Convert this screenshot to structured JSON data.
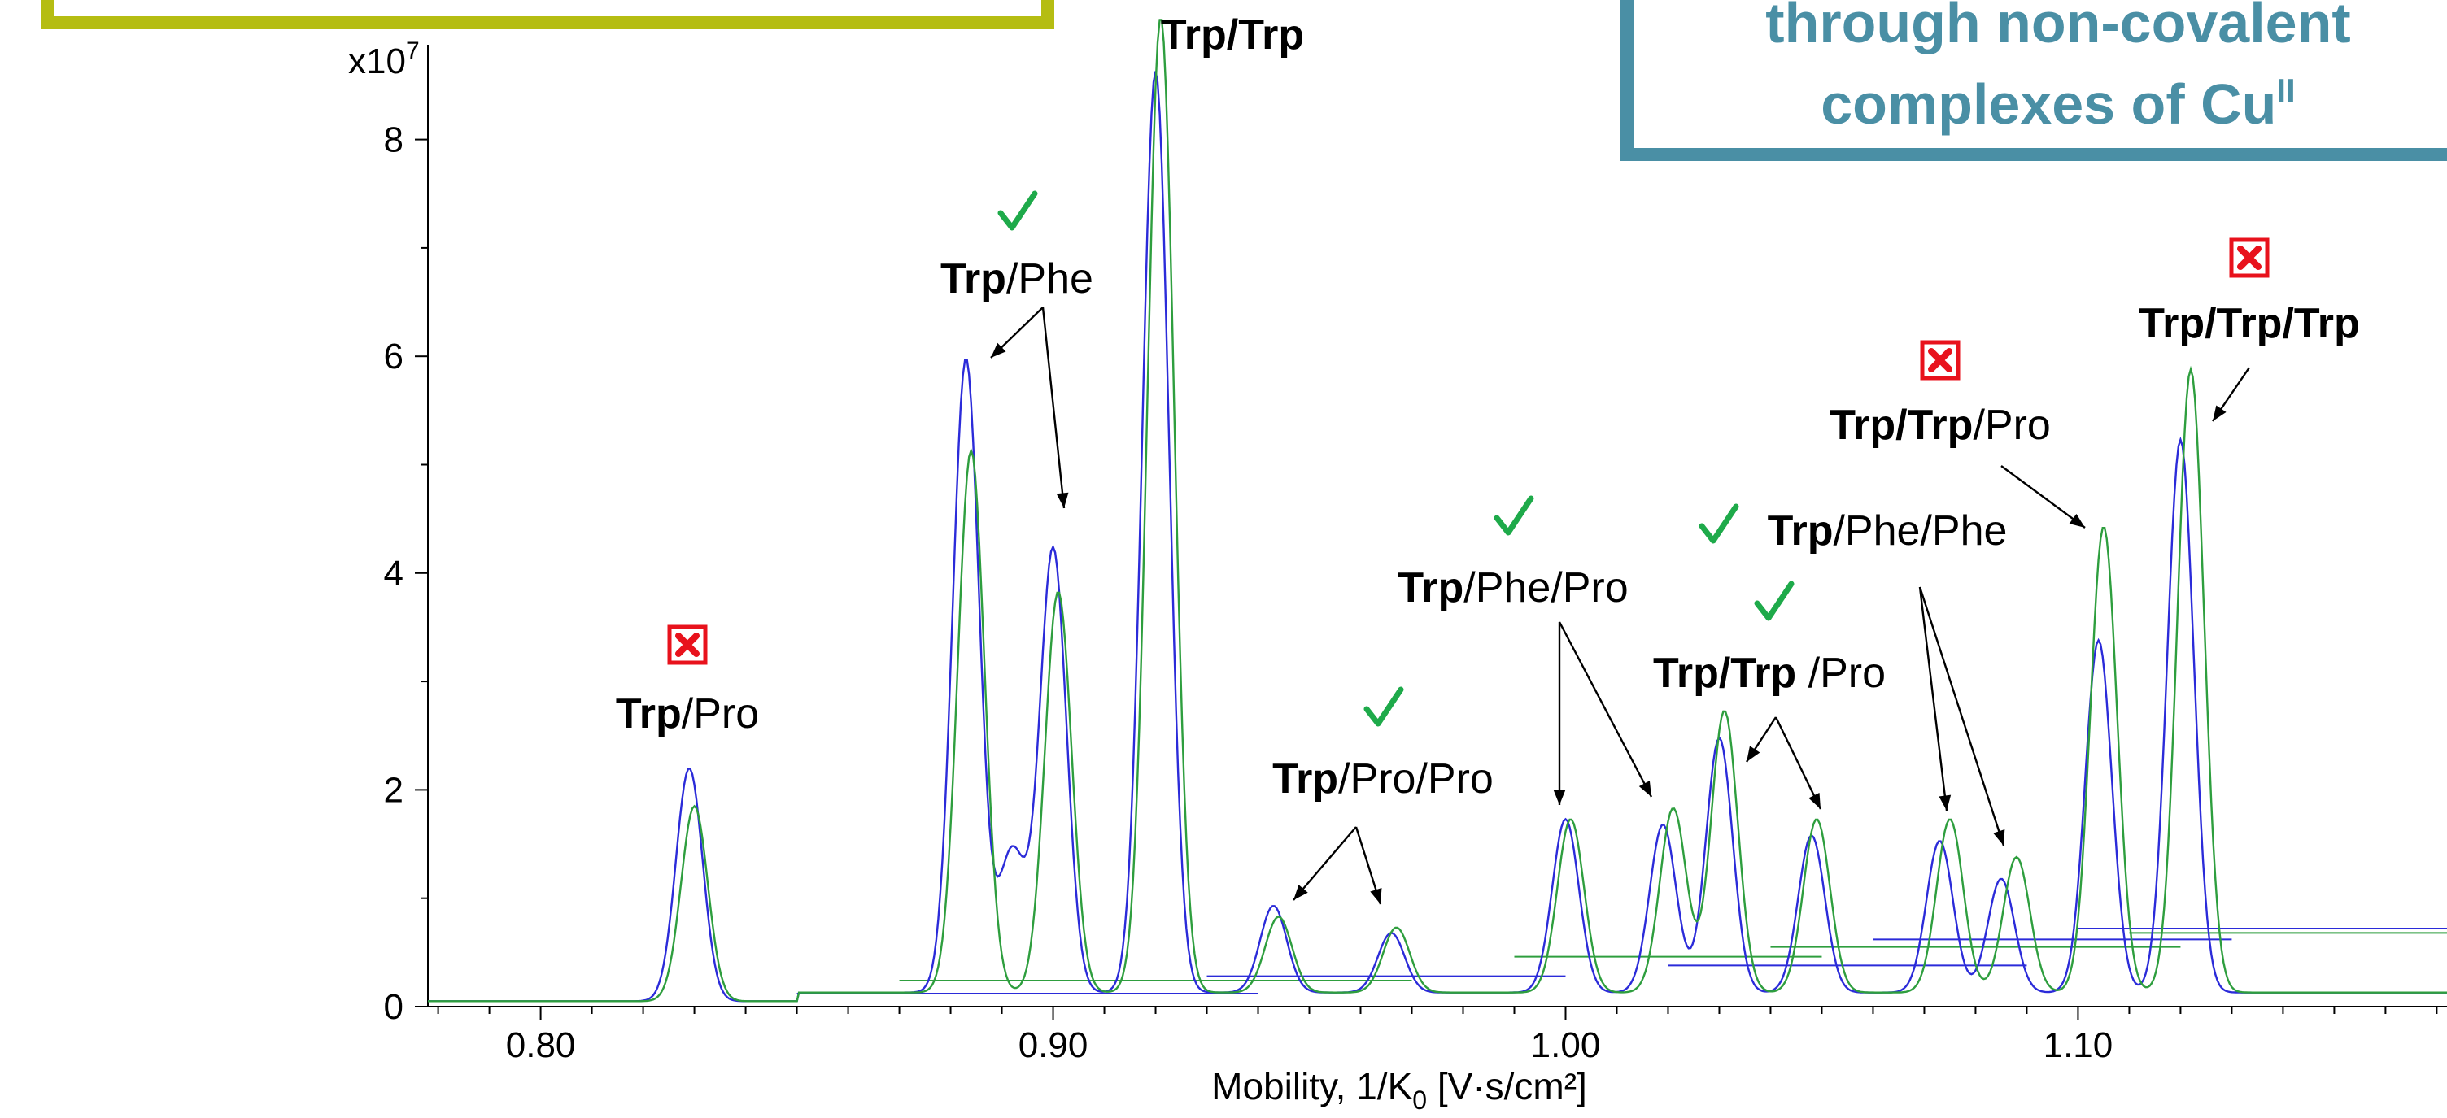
{
  "chart_data": {
    "type": "line",
    "title": "",
    "xlabel": "Mobility, 1/K",
    "xlabel_sub": "0",
    "xlabel_units": " [V·s/cm²]",
    "ylabel": "",
    "y_multiplier_base": "x10",
    "y_multiplier_exp": "7",
    "xlim": [
      0.778,
      1.172
    ],
    "ylim": [
      0,
      9
    ],
    "x_ticks": [
      {
        "value": 0.8,
        "label": "0.80"
      },
      {
        "value": 0.9,
        "label": "0.90"
      },
      {
        "value": 1.0,
        "label": "1.00"
      },
      {
        "value": 1.1,
        "label": "1.10"
      }
    ],
    "y_ticks": [
      {
        "value": 0,
        "label": "0"
      },
      {
        "value": 2,
        "label": "2"
      },
      {
        "value": 4,
        "label": "4"
      },
      {
        "value": 6,
        "label": "6"
      },
      {
        "value": 8,
        "label": "8"
      }
    ],
    "grid": false,
    "series": [
      {
        "color": "#2b2bd9",
        "peaks": [
          {
            "x": 0.829,
            "h": 2.15
          },
          {
            "x": 0.883,
            "h": 5.85
          },
          {
            "x": 0.892,
            "h": 1.3
          },
          {
            "x": 0.9,
            "h": 4.1
          },
          {
            "x": 0.92,
            "h": 8.5
          },
          {
            "x": 0.943,
            "h": 0.8
          },
          {
            "x": 0.966,
            "h": 0.55
          },
          {
            "x": 1.0,
            "h": 1.6
          },
          {
            "x": 1.019,
            "h": 1.55
          },
          {
            "x": 1.03,
            "h": 2.35
          },
          {
            "x": 1.048,
            "h": 1.45
          },
          {
            "x": 1.073,
            "h": 1.4
          },
          {
            "x": 1.085,
            "h": 1.05
          },
          {
            "x": 1.104,
            "h": 3.25
          },
          {
            "x": 1.12,
            "h": 5.1
          }
        ]
      },
      {
        "color": "#2e9e3e",
        "peaks": [
          {
            "x": 0.83,
            "h": 1.8
          },
          {
            "x": 0.884,
            "h": 5.0
          },
          {
            "x": 0.901,
            "h": 3.7
          },
          {
            "x": 0.921,
            "h": 9.0
          },
          {
            "x": 0.944,
            "h": 0.7
          },
          {
            "x": 0.967,
            "h": 0.6
          },
          {
            "x": 1.001,
            "h": 1.6
          },
          {
            "x": 1.021,
            "h": 1.7
          },
          {
            "x": 1.031,
            "h": 2.6
          },
          {
            "x": 1.049,
            "h": 1.6
          },
          {
            "x": 1.075,
            "h": 1.6
          },
          {
            "x": 1.088,
            "h": 1.25
          },
          {
            "x": 1.105,
            "h": 4.3
          },
          {
            "x": 1.122,
            "h": 5.75
          }
        ]
      }
    ],
    "annotations": [
      {
        "parts": [
          [
            "Trp",
            true
          ],
          [
            "/Pro",
            false
          ]
        ],
        "mark": "cross"
      },
      {
        "parts": [
          [
            "Trp",
            true
          ],
          [
            "/Phe",
            false
          ]
        ],
        "mark": "check"
      },
      {
        "parts": [
          [
            "Trp/Trp",
            true
          ]
        ],
        "mark": ""
      },
      {
        "parts": [
          [
            "Trp",
            true
          ],
          [
            "/Pro/Pro",
            false
          ]
        ],
        "mark": "check"
      },
      {
        "parts": [
          [
            "Trp",
            true
          ],
          [
            "/Phe/Pro",
            false
          ]
        ],
        "mark": "check"
      },
      {
        "parts": [
          [
            "Trp/Trp",
            true
          ],
          [
            " /Pro",
            false
          ]
        ],
        "mark": "check"
      },
      {
        "parts": [
          [
            "Trp",
            true
          ],
          [
            "/Phe/Phe",
            false
          ]
        ],
        "mark": "check"
      },
      {
        "parts": [
          [
            "Trp/Trp",
            true
          ],
          [
            "/Pro",
            false
          ]
        ],
        "mark": "cross"
      },
      {
        "parts": [
          [
            "Trp/Trp/Trp",
            true
          ]
        ],
        "mark": "cross"
      }
    ]
  },
  "callout_box": {
    "line1": "through non-covalent",
    "line2_main": "complexes of Cu",
    "line2_sup": "II",
    "border_color": "#4a8fa5"
  },
  "top_left_box": {
    "border_color": "#b5bd12"
  },
  "colors": {
    "check": "#1eaa4a",
    "cross": "#e8121c"
  }
}
